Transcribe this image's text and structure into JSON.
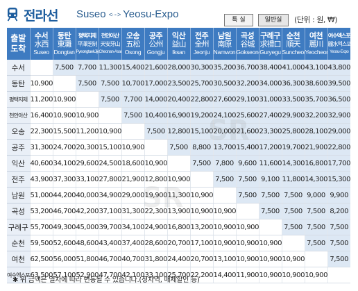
{
  "header": {
    "line_name": "전라선",
    "route_from": "Suseo",
    "route_arrow": "<····>",
    "route_to": "Yeosu-Expo",
    "legend_special": "특 실",
    "legend_normal": "일반실",
    "unit": "(단위 : 원, ₩)"
  },
  "table": {
    "corner": [
      "출발",
      "도착"
    ],
    "columns": [
      {
        "kr": "수서",
        "han": "水西",
        "en": "Suseo"
      },
      {
        "kr": "동탄",
        "han": "東灘",
        "en": "Dongtan"
      },
      {
        "kr": "평택지제",
        "han": "平澤芝制",
        "en": "PyeongtaekJije",
        "small": true
      },
      {
        "kr": "천안아산",
        "han": "天安牙山",
        "en": "Cheonan-Asan",
        "small": true
      },
      {
        "kr": "오송",
        "han": "五松",
        "en": "Osong"
      },
      {
        "kr": "공주",
        "han": "公州",
        "en": "Gongju"
      },
      {
        "kr": "익산",
        "han": "益山",
        "en": "Iksan"
      },
      {
        "kr": "전주",
        "han": "全州",
        "en": "Jeonju"
      },
      {
        "kr": "남원",
        "han": "南原",
        "en": "Namwon"
      },
      {
        "kr": "곡성",
        "han": "谷城",
        "en": "Gokseong"
      },
      {
        "kr": "구례구",
        "han": "求禮口",
        "en": "Guryegu"
      },
      {
        "kr": "순천",
        "han": "順天",
        "en": "Suncheon"
      },
      {
        "kr": "여천",
        "han": "麗川",
        "en": "Yeocheon"
      },
      {
        "kr": "여수엑스포",
        "han": "麗水엑스포",
        "en": "Yeosu-Expo",
        "small": true
      }
    ],
    "rows": [
      {
        "label": "수서",
        "cells": [
          "",
          "7,500",
          "7,700",
          "11,300",
          "15,400",
          "21,600",
          "28,000",
          "30,300",
          "35,200",
          "36,700",
          "38,400",
          "41,000",
          "43,100",
          "43,800"
        ]
      },
      {
        "label": "동탄",
        "cells": [
          "10,900",
          "",
          "7,500",
          "7,500",
          "10,700",
          "17,000",
          "23,500",
          "25,700",
          "30,500",
          "32,200",
          "34,000",
          "36,300",
          "38,600",
          "39,500"
        ]
      },
      {
        "label": "평택지제",
        "small": true,
        "cells": [
          "11,200",
          "10,900",
          "",
          "7,500",
          "7,700",
          "14,000",
          "20,400",
          "22,800",
          "27,600",
          "29,100",
          "31,000",
          "33,500",
          "35,700",
          "36,500"
        ]
      },
      {
        "label": "천안아산",
        "small": true,
        "cells": [
          "16,400",
          "10,900",
          "10,900",
          "",
          "7,500",
          "10,400",
          "16,900",
          "19,200",
          "24,100",
          "25,600",
          "27,400",
          "29,900",
          "32,200",
          "32,900"
        ]
      },
      {
        "label": "오송",
        "cells": [
          "22,300",
          "15,500",
          "11,200",
          "10,900",
          "",
          "7,500",
          "12,800",
          "15,100",
          "20,000",
          "21,600",
          "23,300",
          "25,800",
          "28,100",
          "29,000"
        ]
      },
      {
        "label": "공주",
        "cells": [
          "31,300",
          "24,700",
          "20,300",
          "15,100",
          "10,900",
          "",
          "7,500",
          "8,800",
          "13,700",
          "15,400",
          "17,200",
          "19,700",
          "21,900",
          "22,800"
        ]
      },
      {
        "label": "익산",
        "cells": [
          "40,600",
          "34,100",
          "29,600",
          "24,500",
          "18,600",
          "10,900",
          "",
          "7,500",
          "7,800",
          "9,600",
          "11,600",
          "14,300",
          "16,800",
          "17,700"
        ]
      },
      {
        "label": "전주",
        "cells": [
          "43,900",
          "37,300",
          "33,100",
          "27,800",
          "21,900",
          "12,800",
          "10,900",
          "",
          "7,500",
          "7,500",
          "9,100",
          "11,800",
          "14,300",
          "15,300"
        ]
      },
      {
        "label": "남원",
        "cells": [
          "51,000",
          "44,200",
          "40,000",
          "34,900",
          "29,000",
          "19,900",
          "11,300",
          "10,900",
          "",
          "7,500",
          "7,500",
          "7,500",
          "9,000",
          "9,900"
        ]
      },
      {
        "label": "곡성",
        "cells": [
          "53,200",
          "46,700",
          "42,200",
          "37,100",
          "31,300",
          "22,300",
          "13,900",
          "10,900",
          "10,900",
          "",
          "7,500",
          "7,500",
          "7,500",
          "8,200"
        ]
      },
      {
        "label": "구례구",
        "cells": [
          "55,700",
          "49,300",
          "45,000",
          "39,700",
          "34,100",
          "24,900",
          "16,800",
          "13,200",
          "10,900",
          "10,900",
          "",
          "7,500",
          "7,500",
          "7,500"
        ]
      },
      {
        "label": "순천",
        "cells": [
          "59,500",
          "52,600",
          "48,600",
          "43,400",
          "37,400",
          "28,600",
          "20,700",
          "17,100",
          "10,900",
          "10,900",
          "10,900",
          "",
          "7,500",
          "7,500"
        ]
      },
      {
        "label": "여천",
        "cells": [
          "62,500",
          "56,000",
          "51,800",
          "46,700",
          "40,700",
          "31,800",
          "24,400",
          "20,700",
          "13,100",
          "10,900",
          "10,900",
          "10,900",
          "",
          "7,500"
        ]
      },
      {
        "label": "여수엑스포",
        "small": true,
        "cells": [
          "63,500",
          "57,100",
          "52,900",
          "47,700",
          "42,100",
          "33,100",
          "25,700",
          "22,200",
          "14,400",
          "11,900",
          "10,900",
          "10,900",
          "10,900",
          ""
        ]
      }
    ]
  },
  "note": "✱ 위 금액은 열차에 따라 변동될 수 있습니다.(정차역, 매체할인 등)",
  "colors": {
    "header_blue": "#3e7bc1",
    "special_cell": "#dde8f4",
    "title_blue": "#1d5d9e"
  },
  "icons": {
    "train": "train-icon"
  }
}
